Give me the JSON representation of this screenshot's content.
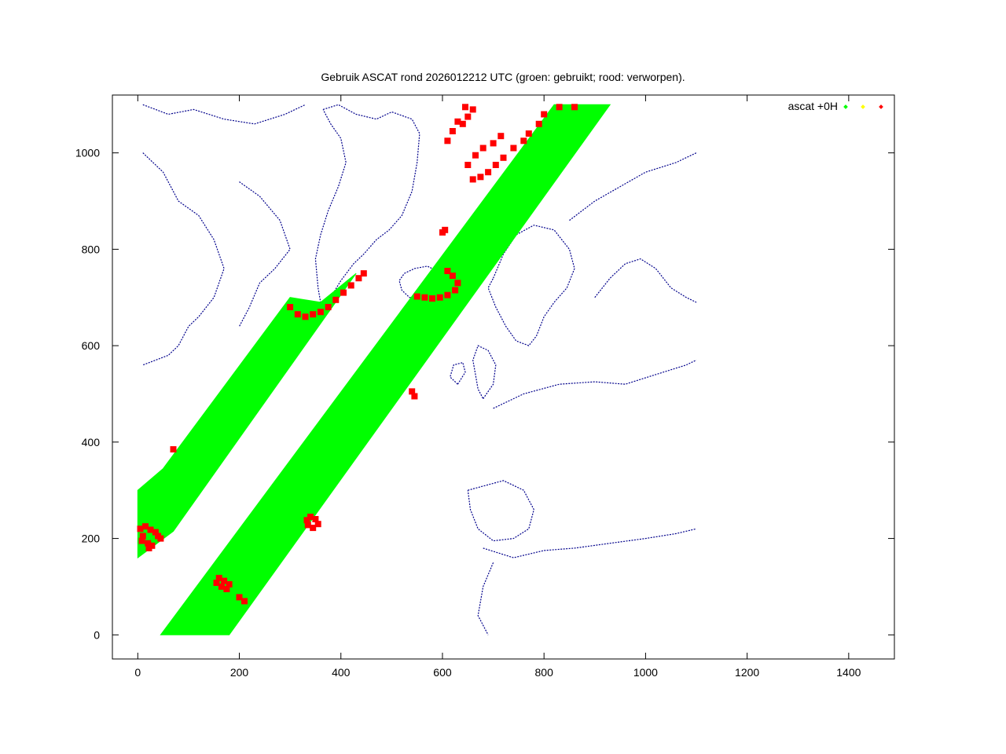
{
  "chart_data": {
    "type": "scatter",
    "title": "Gebruik ASCAT rond 2026012212 UTC (groen: gebruikt; rood: verworpen).",
    "xlabel": "",
    "ylabel": "",
    "xlim": [
      -50,
      1490
    ],
    "ylim": [
      -50,
      1120
    ],
    "x_ticks": [
      0,
      200,
      400,
      600,
      800,
      1000,
      1200,
      1400
    ],
    "y_ticks": [
      0,
      200,
      400,
      600,
      800,
      1000
    ],
    "grid": false,
    "legend_position": "top-right",
    "legend": [
      {
        "label": "ascat +0H",
        "color": "#00ff00"
      },
      {
        "label": "",
        "color": "#ffff00"
      },
      {
        "label": "",
        "color": "#ff0000"
      }
    ],
    "colors": {
      "used": "#00ff00",
      "rejected": "#ff0000",
      "coast": "#00008b",
      "frame": "#000000"
    },
    "series": [
      {
        "name": "ascat +0H",
        "status": "used",
        "color": "#00ff00",
        "swaths": [
          {
            "polygon": [
              [
                0,
                160
              ],
              [
                0,
                300
              ],
              [
                50,
                345
              ],
              [
                300,
                700
              ],
              [
                360,
                690
              ],
              [
                430,
                750
              ],
              [
                70,
                215
              ]
            ]
          },
          {
            "polygon": [
              [
                45,
                0
              ],
              [
                180,
                0
              ],
              [
                930,
                1100
              ],
              [
                820,
                1100
              ]
            ]
          }
        ]
      },
      {
        "status": "rejected",
        "color": "#ff0000",
        "points": [
          [
            5,
            220
          ],
          [
            15,
            225
          ],
          [
            25,
            218
          ],
          [
            35,
            213
          ],
          [
            40,
            205
          ],
          [
            45,
            200
          ],
          [
            10,
            205
          ],
          [
            8,
            195
          ],
          [
            20,
            190
          ],
          [
            28,
            185
          ],
          [
            22,
            180
          ],
          [
            70,
            385
          ],
          [
            300,
            680
          ],
          [
            315,
            665
          ],
          [
            330,
            660
          ],
          [
            345,
            665
          ],
          [
            360,
            670
          ],
          [
            375,
            680
          ],
          [
            390,
            695
          ],
          [
            405,
            710
          ],
          [
            420,
            725
          ],
          [
            435,
            740
          ],
          [
            445,
            750
          ],
          [
            610,
            755
          ],
          [
            620,
            745
          ],
          [
            630,
            730
          ],
          [
            625,
            715
          ],
          [
            610,
            705
          ],
          [
            595,
            700
          ],
          [
            580,
            698
          ],
          [
            565,
            700
          ],
          [
            550,
            702
          ],
          [
            640,
            1060
          ],
          [
            650,
            1075
          ],
          [
            660,
            1090
          ],
          [
            645,
            1095
          ],
          [
            630,
            1065
          ],
          [
            620,
            1045
          ],
          [
            610,
            1025
          ],
          [
            720,
            990
          ],
          [
            740,
            1010
          ],
          [
            760,
            1025
          ],
          [
            770,
            1040
          ],
          [
            790,
            1060
          ],
          [
            800,
            1080
          ],
          [
            830,
            1095
          ],
          [
            860,
            1095
          ],
          [
            705,
            975
          ],
          [
            690,
            960
          ],
          [
            675,
            950
          ],
          [
            660,
            945
          ],
          [
            650,
            975
          ],
          [
            665,
            995
          ],
          [
            680,
            1010
          ],
          [
            700,
            1020
          ],
          [
            715,
            1035
          ],
          [
            340,
            245
          ],
          [
            350,
            240
          ],
          [
            355,
            230
          ],
          [
            345,
            222
          ],
          [
            335,
            228
          ],
          [
            333,
            238
          ],
          [
            160,
            118
          ],
          [
            170,
            112
          ],
          [
            180,
            105
          ],
          [
            175,
            95
          ],
          [
            165,
            100
          ],
          [
            155,
            108
          ],
          [
            200,
            78
          ],
          [
            210,
            70
          ],
          [
            600,
            835
          ],
          [
            605,
            840
          ],
          [
            545,
            495
          ],
          [
            540,
            505
          ]
        ]
      }
    ],
    "coastlines": {
      "color": "#00008b",
      "note_regions": [
        "Canada",
        "Greenland",
        "Iceland",
        "Scandinavia",
        "Europe",
        "Iberia",
        "North Africa"
      ]
    }
  }
}
